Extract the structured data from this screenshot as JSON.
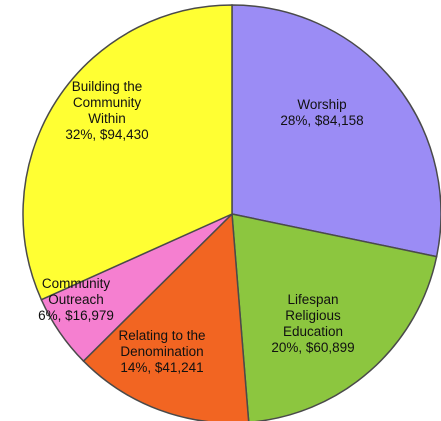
{
  "chart_data": {
    "type": "pie",
    "start_direction": "top",
    "direction": "clockwise",
    "slices": [
      {
        "name": "Worship",
        "label_lines": [
          "Worship",
          "28%, $84,158"
        ],
        "value": 84158,
        "percent": 28,
        "color": "#9b8cf5"
      },
      {
        "name": "Lifespan Religious Education",
        "label_lines": [
          "Lifespan",
          "Religious",
          "Education",
          "20%, $60,899"
        ],
        "value": 60899,
        "percent": 20,
        "color": "#8cc63f"
      },
      {
        "name": "Relating to the Denomination",
        "label_lines": [
          "Relating to the",
          "Denomination",
          "14%, $41,241"
        ],
        "value": 41241,
        "percent": 14,
        "color": "#f26522"
      },
      {
        "name": "Community Outreach",
        "label_lines": [
          "Community",
          "Outreach",
          "6%, $16,979"
        ],
        "value": 16979,
        "percent": 6,
        "color": "#f57fd0"
      },
      {
        "name": "Building the Community Within",
        "label_lines": [
          "Building the",
          "Community",
          "Within",
          "32%, $94,430"
        ],
        "value": 94430,
        "percent": 32,
        "color": "#ffff33"
      }
    ]
  }
}
